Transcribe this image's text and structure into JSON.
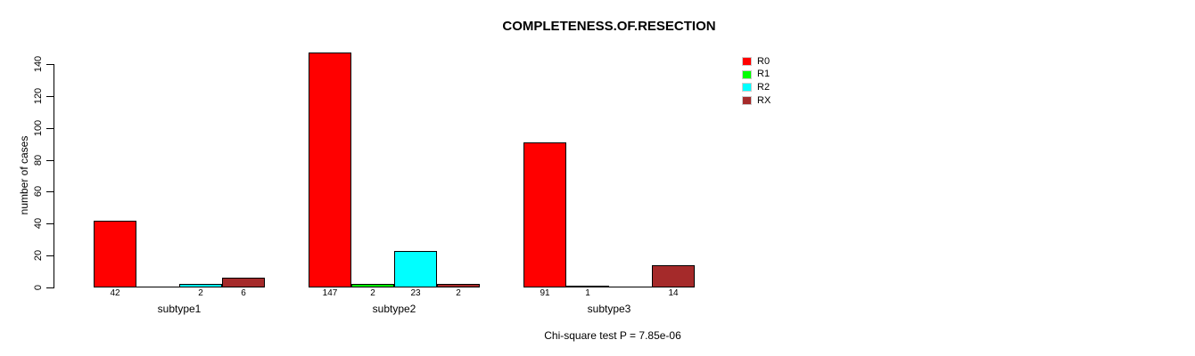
{
  "chart_data": {
    "type": "bar",
    "title": "COMPLETENESS.OF.RESECTION",
    "categories": [
      "subtype1",
      "subtype2",
      "subtype3"
    ],
    "series": [
      {
        "name": "R0",
        "color": "#ff0000",
        "values": [
          42,
          147,
          91
        ]
      },
      {
        "name": "R1",
        "color": "#00ff00",
        "values": [
          0,
          2,
          1
        ]
      },
      {
        "name": "R2",
        "color": "#00ffff",
        "values": [
          2,
          23,
          0
        ]
      },
      {
        "name": "RX",
        "color": "#a52a2a",
        "values": [
          6,
          2,
          14
        ]
      }
    ],
    "xlabel": "",
    "ylabel": "number of cases",
    "yticks": [
      0,
      20,
      40,
      60,
      80,
      100,
      120,
      140
    ],
    "ylim": [
      0,
      140
    ],
    "grid": false,
    "legend_position": "top-right",
    "bar_value_labels": "shown under each bar, omitted when value is 0",
    "annotation": "Chi-square test P = 7.85e-06"
  }
}
